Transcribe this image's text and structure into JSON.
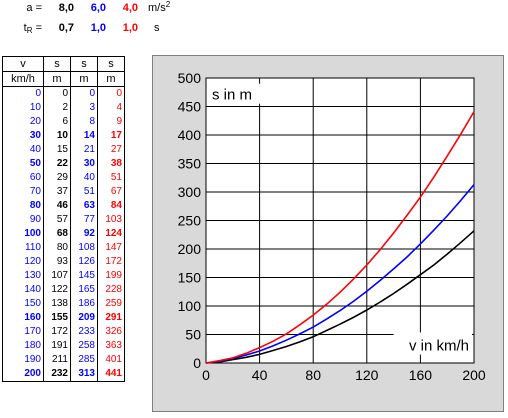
{
  "params": {
    "a_label": "a =",
    "a_values": [
      "8,0",
      "6,0",
      "4,0"
    ],
    "a_unit": "m/s",
    "a_unit_sup": "2",
    "t_label": "t",
    "t_sub": "R",
    "t_eq": " =",
    "t_values": [
      "0,7",
      "1,0",
      "1,0"
    ],
    "t_unit": "s"
  },
  "table": {
    "headers": [
      "v",
      "s",
      "s",
      "s"
    ],
    "units": [
      "km/h",
      "m",
      "m",
      "m"
    ],
    "rows": [
      [
        "0",
        "0",
        "0",
        "0"
      ],
      [
        "10",
        "2",
        "3",
        "4"
      ],
      [
        "20",
        "6",
        "8",
        "9"
      ],
      [
        "30",
        "10",
        "14",
        "17"
      ],
      [
        "40",
        "15",
        "21",
        "27"
      ],
      [
        "50",
        "22",
        "30",
        "38"
      ],
      [
        "60",
        "29",
        "40",
        "51"
      ],
      [
        "70",
        "37",
        "51",
        "67"
      ],
      [
        "80",
        "46",
        "63",
        "84"
      ],
      [
        "90",
        "57",
        "77",
        "103"
      ],
      [
        "100",
        "68",
        "92",
        "124"
      ],
      [
        "110",
        "80",
        "108",
        "147"
      ],
      [
        "120",
        "93",
        "126",
        "172"
      ],
      [
        "130",
        "107",
        "145",
        "199"
      ],
      [
        "140",
        "122",
        "165",
        "228"
      ],
      [
        "150",
        "138",
        "186",
        "259"
      ],
      [
        "160",
        "155",
        "209",
        "291"
      ],
      [
        "170",
        "172",
        "233",
        "326"
      ],
      [
        "180",
        "191",
        "258",
        "363"
      ],
      [
        "190",
        "211",
        "285",
        "401"
      ],
      [
        "200",
        "232",
        "313",
        "441"
      ]
    ],
    "bold_rows": [
      3,
      5,
      8,
      10,
      16,
      20
    ]
  },
  "colors": {
    "black": "#000000",
    "blue": "#0000ff",
    "red": "#ff0000",
    "panel": "#d9d9d9"
  },
  "chart_data": {
    "type": "line",
    "ylabel": "s in m",
    "xlabel": "v in km/h",
    "xlim": [
      0,
      200
    ],
    "ylim": [
      0,
      500
    ],
    "xticks": [
      "0",
      "40",
      "80",
      "120",
      "160",
      "200"
    ],
    "yticks": [
      "0",
      "50",
      "100",
      "150",
      "200",
      "250",
      "300",
      "350",
      "400",
      "450",
      "500"
    ],
    "grid": true,
    "x": [
      0,
      10,
      20,
      30,
      40,
      50,
      60,
      70,
      80,
      90,
      100,
      110,
      120,
      130,
      140,
      150,
      160,
      170,
      180,
      190,
      200
    ],
    "series": [
      {
        "color": "#000000",
        "values": [
          0,
          2,
          6,
          10,
          15,
          22,
          29,
          37,
          46,
          57,
          68,
          80,
          93,
          107,
          122,
          138,
          155,
          172,
          191,
          211,
          232
        ]
      },
      {
        "color": "#0000ff",
        "values": [
          0,
          3,
          8,
          14,
          21,
          30,
          40,
          51,
          63,
          77,
          92,
          108,
          126,
          145,
          165,
          186,
          209,
          233,
          258,
          285,
          313
        ]
      },
      {
        "color": "#ff0000",
        "values": [
          0,
          4,
          9,
          17,
          27,
          38,
          51,
          67,
          84,
          103,
          124,
          147,
          172,
          199,
          228,
          259,
          291,
          326,
          363,
          401,
          441
        ]
      }
    ]
  }
}
